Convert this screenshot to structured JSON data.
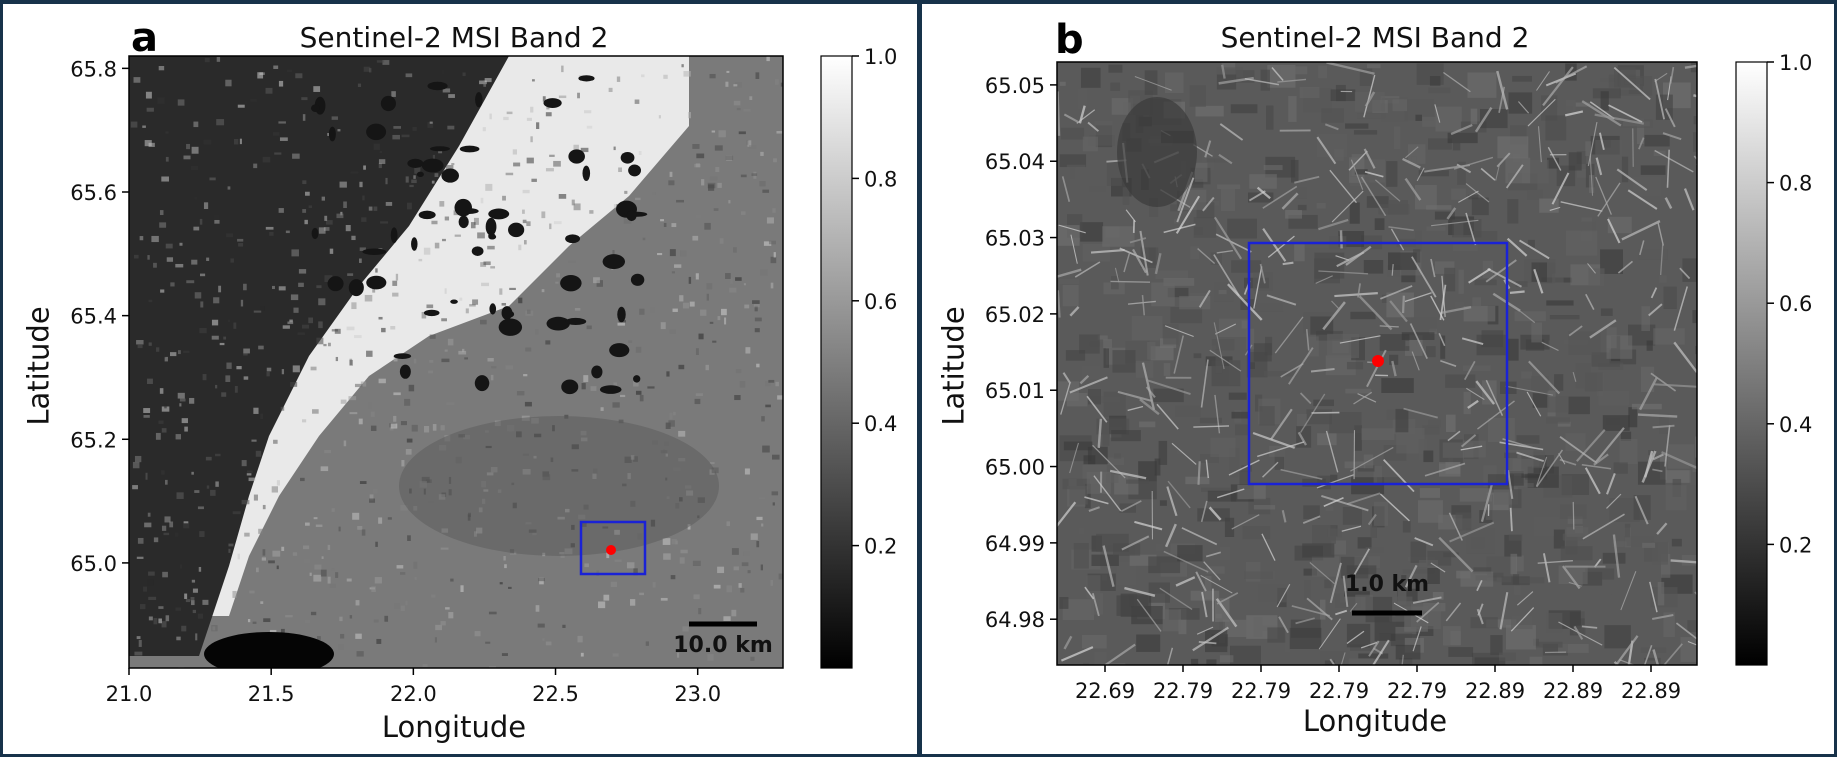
{
  "chart_data": [
    {
      "type": "heatmap",
      "panel_label": "a",
      "title": "Sentinel-2 MSI Band 2",
      "xlabel": "Longitude",
      "ylabel": "Latitude",
      "x_ticks": [
        "21.0",
        "21.5",
        "22.0",
        "22.5",
        "23.0"
      ],
      "x_tick_values": [
        21.0,
        21.5,
        22.0,
        22.5,
        23.0
      ],
      "y_ticks": [
        "65.0",
        "65.2",
        "65.4",
        "65.6",
        "65.8"
      ],
      "y_tick_values": [
        65.0,
        65.2,
        65.4,
        65.6,
        65.8
      ],
      "xlim": [
        21.0,
        23.3
      ],
      "ylim": [
        64.83,
        65.82
      ],
      "colormap": "gray",
      "colorbar_ticks": [
        "0.2",
        "0.4",
        "0.6",
        "0.8",
        "1.0"
      ],
      "colorbar_tick_values": [
        0.2,
        0.4,
        0.6,
        0.8,
        1.0
      ],
      "colorbar_range": [
        0.0,
        1.0
      ],
      "scale_bar_label": "10.0 km",
      "marker_point": {
        "lon": 22.7,
        "lat": 65.015,
        "color": "#ff0000"
      },
      "highlight_box": {
        "lon": [
          22.6,
          22.81
        ],
        "lat": [
          64.97,
          65.055
        ],
        "color": "#1a22d6"
      }
    },
    {
      "type": "heatmap",
      "panel_label": "b",
      "title": "Sentinel-2 MSI Band 2",
      "xlabel": "Longitude",
      "ylabel": "Latitude",
      "x_ticks": [
        "22.69",
        "22.79",
        "22.79",
        "22.79",
        "22.79",
        "22.89",
        "22.89",
        "22.89"
      ],
      "y_ticks": [
        "64.98",
        "64.99",
        "65.00",
        "65.01",
        "65.02",
        "65.03",
        "65.04",
        "65.05"
      ],
      "y_tick_values": [
        64.98,
        64.99,
        65.0,
        65.01,
        65.02,
        65.03,
        65.04,
        65.05
      ],
      "ylim": [
        64.974,
        65.053
      ],
      "colormap": "gray",
      "colorbar_ticks": [
        "0.2",
        "0.4",
        "0.6",
        "0.8",
        "1.0"
      ],
      "colorbar_tick_values": [
        0.2,
        0.4,
        0.6,
        0.8,
        1.0
      ],
      "colorbar_range": [
        0.0,
        1.0
      ],
      "scale_bar_label": "1.0 km",
      "marker_point": {
        "lat": 65.0133,
        "color": "#ff0000"
      },
      "highlight_box": {
        "lat": [
          64.9975,
          65.0293
        ],
        "color": "#1a22d6"
      }
    }
  ]
}
